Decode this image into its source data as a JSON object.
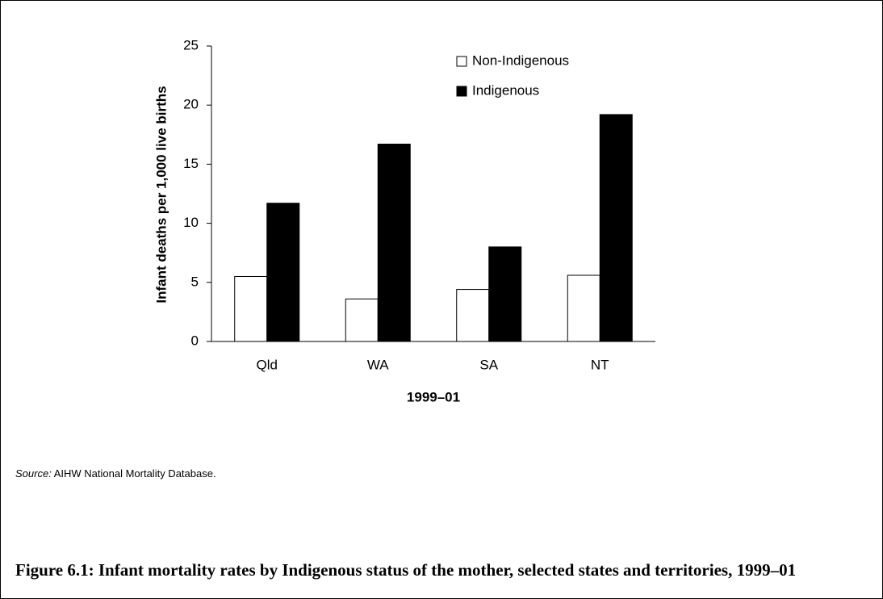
{
  "chart_data": {
    "type": "bar",
    "x_label": "1999–01",
    "y_label": "Infant deaths per 1,000 live births",
    "categories": [
      "Qld",
      "WA",
      "SA",
      "NT"
    ],
    "series": [
      {
        "name": "Non-Indigenous",
        "color": "#ffffff",
        "values": [
          5.5,
          3.6,
          4.4,
          5.6
        ]
      },
      {
        "name": "Indigenous",
        "color": "#000000",
        "values": [
          11.7,
          16.7,
          8.0,
          19.2
        ]
      }
    ],
    "ylim": [
      0,
      25
    ],
    "yticks": [
      0,
      5,
      10,
      15,
      20,
      25
    ],
    "grid": false,
    "legend": "top-right"
  },
  "source_label": "Source:",
  "source_text": "AIHW National Mortality Database.",
  "caption": "Figure 6.1: Infant mortality rates by Indigenous status of the mother, selected states and territories, 1999–01"
}
